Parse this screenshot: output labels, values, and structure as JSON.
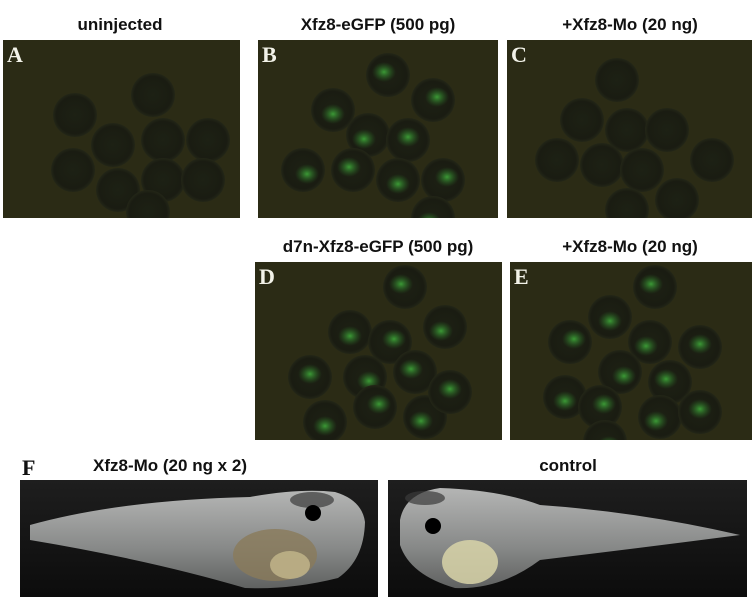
{
  "panels": [
    {
      "letter": "A",
      "title": "uninjected"
    },
    {
      "letter": "B",
      "title": "Xfz8-eGFP (500 pg)"
    },
    {
      "letter": "C",
      "title": "+Xfz8-Mo (20 ng)"
    },
    {
      "letter": "D",
      "title": "d7n-Xfz8-eGFP (500 pg)"
    },
    {
      "letter": "E",
      "title": "+Xfz8-Mo (20 ng)"
    }
  ],
  "panel_f": {
    "letter": "F",
    "images": [
      {
        "title": "Xfz8-Mo (20 ng x 2)"
      },
      {
        "title": "control"
      }
    ]
  }
}
